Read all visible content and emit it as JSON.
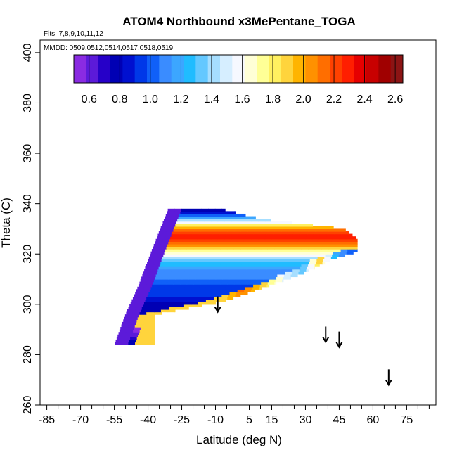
{
  "chart_data": {
    "type": "heatmap",
    "title": "ATOM4 Northbound x3MePentane_TOGA",
    "subtitle_flights": "Flts: 7,8,9,10,11,12",
    "subtitle_dates": "MMDD: 0509,0512,0514,0517,0518,0519",
    "xlabel": "Latitude (deg N)",
    "ylabel": "Theta (C)",
    "xlim": [
      -88,
      88
    ],
    "ylim": [
      260,
      405
    ],
    "x_ticks": [
      -85,
      -70,
      -55,
      -40,
      -25,
      -10,
      5,
      15,
      30,
      45,
      60,
      75
    ],
    "x_minor_ticks": [
      -80,
      -75,
      -65,
      -60,
      -50,
      -45,
      -35,
      -30,
      -20,
      -15,
      -5,
      0,
      10,
      20,
      25,
      35,
      40,
      50,
      55,
      65,
      70,
      80,
      85
    ],
    "y_ticks": [
      260,
      280,
      300,
      320,
      340,
      360,
      380,
      400
    ],
    "colorbar": {
      "range": [
        0.5,
        2.65
      ],
      "tick_values": [
        0.6,
        0.8,
        1.0,
        1.2,
        1.4,
        1.6,
        1.8,
        2.0,
        2.2,
        2.4,
        2.6
      ],
      "tick_labels": [
        "0.6",
        "0.8",
        "1.0",
        "1.2",
        "1.4",
        "1.6",
        "1.8",
        "2.0",
        "2.2",
        "2.4",
        "2.6"
      ],
      "colors": [
        "#8a2be2",
        "#5c1ad9",
        "#2600c8",
        "#0000b4",
        "#0010d0",
        "#0038e8",
        "#1060f8",
        "#3a8cff",
        "#3ca6ff",
        "#20bcff",
        "#64c8ff",
        "#a6deff",
        "#d6eeff",
        "#f6f8ff",
        "#ffffd6",
        "#ffff96",
        "#fff060",
        "#ffd43c",
        "#ffb400",
        "#ff9100",
        "#ff6e00",
        "#ff4100",
        "#ff1e00",
        "#e60000",
        "#c80000",
        "#a00000",
        "#8c1414"
      ]
    },
    "arrows": [
      {
        "lat": -9,
        "theta": 297
      },
      {
        "lat": 39,
        "theta": 285
      },
      {
        "lat": 45,
        "theta": 283
      },
      {
        "lat": 67,
        "theta": 268
      }
    ],
    "field": {
      "theta_bottom": 284,
      "theta_top": 338,
      "left_edge": [
        [
          284,
          -55
        ],
        [
          296,
          -50
        ],
        [
          308,
          -44
        ],
        [
          320,
          -39
        ],
        [
          338,
          -31
        ]
      ],
      "right_edge": [
        [
          296,
          -37
        ],
        [
          301,
          -7
        ],
        [
          306,
          9
        ],
        [
          312,
          28
        ],
        [
          318,
          42
        ],
        [
          321,
          53
        ],
        [
          326,
          53
        ],
        [
          330,
          47
        ],
        [
          334,
          10
        ],
        [
          338,
          -8
        ]
      ],
      "theta_profile": [
        [
          285,
          0.8
        ],
        [
          289,
          0.55
        ],
        [
          293,
          0.58
        ],
        [
          297,
          0.8
        ],
        [
          300,
          0.78
        ],
        [
          303,
          0.9
        ],
        [
          307,
          0.95
        ],
        [
          310,
          1.05
        ],
        [
          314,
          1.12
        ],
        [
          316,
          1.25
        ],
        [
          318,
          1.4
        ],
        [
          320,
          1.6
        ],
        [
          322,
          1.82
        ],
        [
          324,
          2.1
        ],
        [
          327,
          2.3
        ],
        [
          330,
          2.1
        ],
        [
          333,
          1.5
        ],
        [
          336,
          0.9
        ],
        [
          338,
          0.75
        ]
      ],
      "edge_band": [
        [
          -7,
          1.9
        ],
        [
          0,
          2.1
        ],
        [
          10,
          1.9
        ],
        [
          20,
          1.5
        ],
        [
          28,
          1.35
        ],
        [
          35,
          1.9
        ],
        [
          42,
          1.2
        ],
        [
          48,
          1.0
        ],
        [
          53,
          1.05
        ]
      ]
    }
  }
}
